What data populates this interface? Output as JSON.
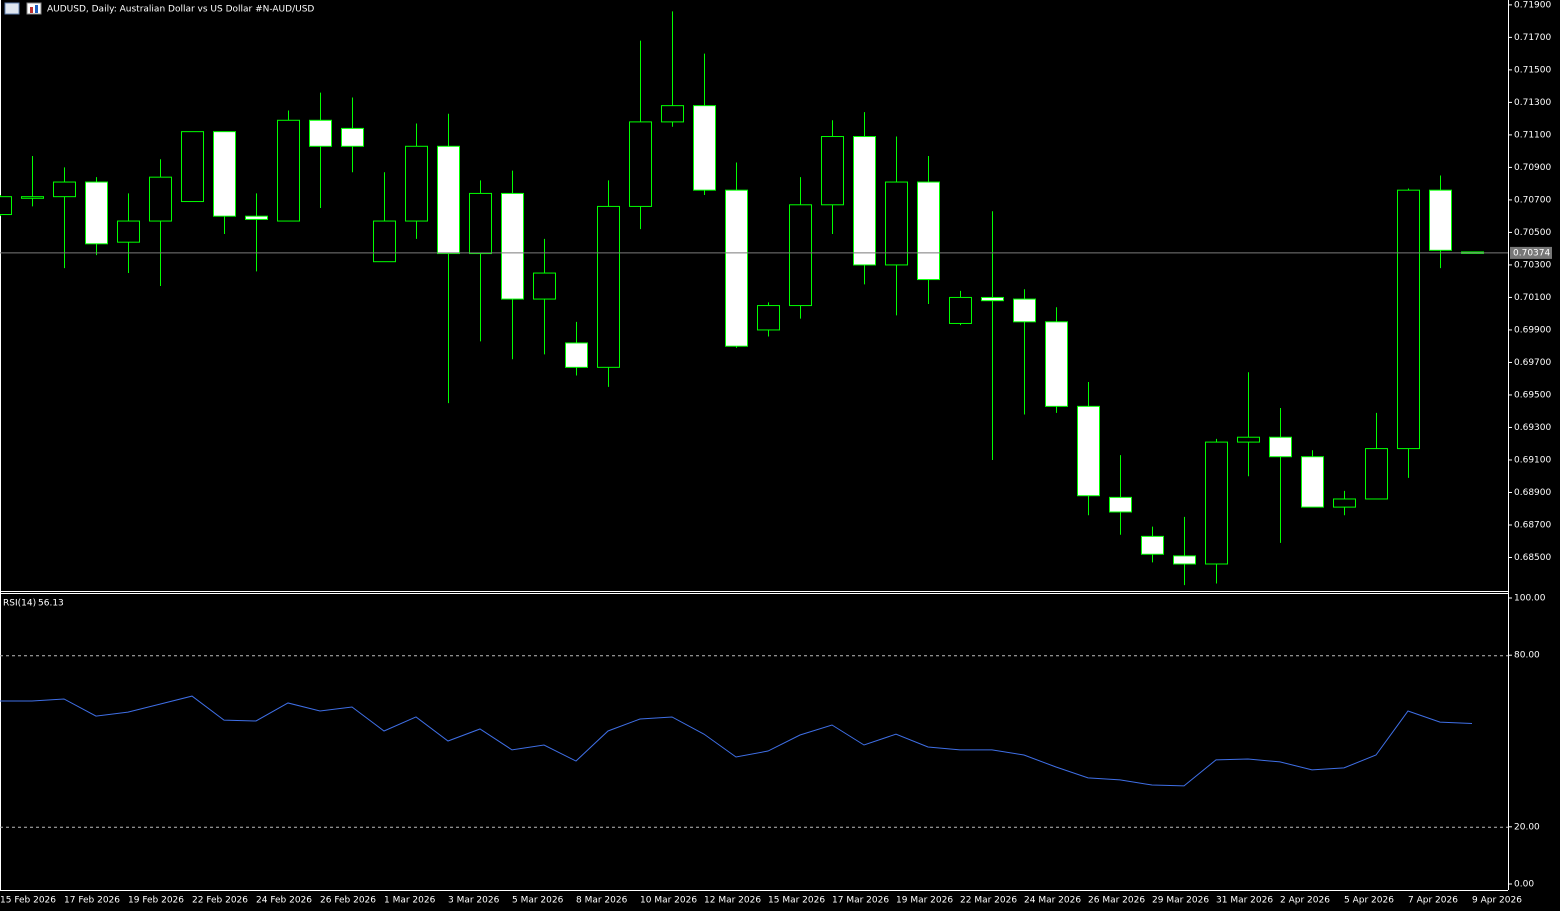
{
  "chart_data": {
    "type": "candlestick",
    "title": "AUDUSD, Daily:  Australian Dollar vs US Dollar #N-AUD/USD",
    "categories": [
      "15 Feb 2026",
      null,
      "17 Feb 2026",
      null,
      "19 Feb 2026",
      null,
      "22 Feb 2026",
      null,
      "24 Feb 2026",
      null,
      "26 Feb 2026",
      null,
      "1 Mar 2026",
      null,
      "3 Mar 2026",
      null,
      "5 Mar 2026",
      null,
      "8 Mar 2026",
      null,
      "10 Mar 2026",
      null,
      "12 Mar 2026",
      null,
      "15 Mar 2026",
      null,
      "17 Mar 2026",
      null,
      "19 Mar 2026",
      null,
      "22 Mar 2026",
      null,
      "24 Mar 2026",
      null,
      "26 Mar 2026",
      null,
      "29 Mar 2026",
      null,
      "31 Mar 2026",
      null,
      "2 Apr 2026",
      null,
      "5 Apr 2026",
      null,
      "7 Apr 2026",
      null,
      "9 Apr 2026"
    ],
    "open": [
      0.7061,
      0.7071,
      0.7072,
      0.7081,
      0.7044,
      0.7057,
      0.7069,
      0.7112,
      0.706,
      0.7057,
      0.7119,
      0.7114,
      0.7032,
      0.7057,
      0.7103,
      0.7037,
      0.7074,
      0.7009,
      0.6982,
      0.6967,
      0.7066,
      0.7118,
      0.7128,
      0.7076,
      0.699,
      0.7005,
      0.7067,
      0.7109,
      0.703,
      0.7081,
      0.6994,
      0.701,
      0.7009,
      0.6995,
      0.6943,
      0.6887,
      0.6863,
      0.6851,
      0.6846,
      0.6921,
      0.6924,
      0.6912,
      0.6881,
      0.6886,
      0.6917,
      0.7076,
      0.7038
    ],
    "high": [
      0.7073,
      0.7097,
      0.709,
      0.7084,
      0.7074,
      0.7095,
      0.7112,
      0.7112,
      0.7074,
      0.7125,
      0.7136,
      0.7133,
      0.7087,
      0.7117,
      0.7123,
      0.7082,
      0.7088,
      0.7046,
      0.6995,
      0.7082,
      0.7168,
      0.7186,
      0.716,
      0.7093,
      0.7007,
      0.7084,
      0.7119,
      0.7124,
      0.7109,
      0.7097,
      0.7014,
      0.7063,
      0.7015,
      0.7004,
      0.6958,
      0.6913,
      0.6869,
      0.6875,
      0.6923,
      0.6964,
      0.6942,
      0.6916,
      0.6891,
      0.6939,
      0.7077,
      0.7085,
      0.7038
    ],
    "low": [
      0.706,
      0.7066,
      0.7028,
      0.7036,
      0.7025,
      0.7017,
      0.7069,
      0.7049,
      0.7026,
      0.7057,
      0.7065,
      0.7087,
      0.7032,
      0.7046,
      0.6945,
      0.6983,
      0.6972,
      0.6975,
      0.6962,
      0.6955,
      0.7052,
      0.7115,
      0.7073,
      0.6979,
      0.6986,
      0.6997,
      0.7049,
      0.7018,
      0.6999,
      0.7006,
      0.6993,
      0.691,
      0.6938,
      0.6939,
      0.6876,
      0.6864,
      0.6847,
      0.6833,
      0.6834,
      0.69,
      0.6859,
      0.6881,
      0.6876,
      0.6886,
      0.6899,
      0.7028,
      0.7037
    ],
    "close": [
      0.7072,
      0.7072,
      0.7081,
      0.7043,
      0.7057,
      0.7084,
      0.7112,
      0.706,
      0.7058,
      0.7119,
      0.7103,
      0.7103,
      0.7057,
      0.7103,
      0.7037,
      0.7074,
      0.7009,
      0.7025,
      0.6967,
      0.7066,
      0.7118,
      0.7128,
      0.7076,
      0.698,
      0.7005,
      0.7067,
      0.7109,
      0.703,
      0.7081,
      0.7021,
      0.701,
      0.7008,
      0.6995,
      0.6943,
      0.6888,
      0.6878,
      0.6852,
      0.6846,
      0.6921,
      0.6924,
      0.6912,
      0.6881,
      0.6886,
      0.6917,
      0.7076,
      0.7039,
      0.70374
    ],
    "up_color": "#000000",
    "down_color": "#ffffff",
    "outline_color": "#00ff00",
    "ylim": [
      0.683,
      0.7193
    ],
    "yticks": [
      {
        "value": 0.719,
        "label": "0.71900"
      },
      {
        "value": 0.717,
        "label": "0.71700"
      },
      {
        "value": 0.715,
        "label": "0.71500"
      },
      {
        "value": 0.713,
        "label": "0.71300"
      },
      {
        "value": 0.711,
        "label": "0.71100"
      },
      {
        "value": 0.709,
        "label": "0.70900"
      },
      {
        "value": 0.707,
        "label": "0.70700"
      },
      {
        "value": 0.705,
        "label": "0.70500"
      },
      {
        "value": 0.703,
        "label": "0.70300"
      },
      {
        "value": 0.701,
        "label": "0.70100"
      },
      {
        "value": 0.699,
        "label": "0.69900"
      },
      {
        "value": 0.697,
        "label": "0.69700"
      },
      {
        "value": 0.695,
        "label": "0.69500"
      },
      {
        "value": 0.693,
        "label": "0.69300"
      },
      {
        "value": 0.691,
        "label": "0.69100"
      },
      {
        "value": 0.689,
        "label": "0.68900"
      },
      {
        "value": 0.687,
        "label": "0.68700"
      },
      {
        "value": 0.685,
        "label": "0.68500"
      }
    ],
    "price_line": {
      "value": 0.70374,
      "label": "0.70374"
    },
    "indicator": {
      "type": "line",
      "name": "RSI(14)",
      "color": "#3f6fe6",
      "values": [
        64.0,
        64.0,
        64.7,
        58.7,
        60.1,
        62.9,
        65.7,
        57.3,
        57.0,
        63.3,
        60.5,
        61.9,
        53.5,
        58.4,
        50.0,
        54.2,
        46.9,
        48.6,
        43.0,
        53.5,
        57.7,
        58.4,
        52.4,
        44.4,
        46.5,
        52.1,
        55.6,
        48.6,
        52.4,
        47.9,
        46.9,
        46.9,
        45.1,
        40.9,
        37.1,
        36.4,
        34.6,
        34.3,
        43.4,
        43.7,
        42.7,
        39.9,
        40.6,
        45.1,
        60.5,
        56.6,
        56.13
      ],
      "ylim": [
        0,
        100
      ],
      "yticks": [
        {
          "value": 100,
          "label": "100.00"
        },
        {
          "value": 80,
          "label": "80.00"
        },
        {
          "value": 20,
          "label": "20.00"
        },
        {
          "value": 0,
          "label": "0.00"
        }
      ],
      "levels": [
        80,
        20
      ]
    }
  }
}
